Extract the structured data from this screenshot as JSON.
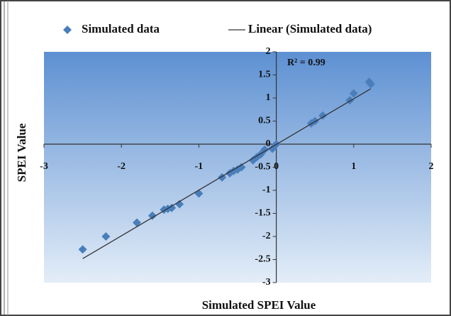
{
  "chart_data": {
    "type": "scatter",
    "x_label": "Simulated SPEI Value",
    "y_label": "SPEI Value",
    "annotation": "R² = 0.99",
    "xlim": [
      -3,
      2
    ],
    "ylim": [
      -3,
      2
    ],
    "xticks": [
      -3,
      -2,
      -1,
      0,
      1,
      2
    ],
    "yticks": [
      -3,
      -2.5,
      -2,
      -1.5,
      -1,
      -0.5,
      0,
      0.5,
      1,
      1.5,
      2
    ],
    "legend": "top",
    "series": [
      {
        "name": "Simulated data",
        "color": "#4a7ebb",
        "marker": "diamond",
        "x": [
          -2.5,
          -2.2,
          -1.8,
          -1.6,
          -1.45,
          -1.4,
          -1.35,
          -1.25,
          -1.0,
          -0.7,
          -0.6,
          -0.55,
          -0.5,
          -0.45,
          -0.3,
          -0.25,
          -0.2,
          -0.15,
          -0.05,
          0,
          0.45,
          0.5,
          0.6,
          0.95,
          1.0,
          1.2,
          1.22
        ],
        "values": [
          -2.28,
          -2.0,
          -1.7,
          -1.55,
          -1.42,
          -1.4,
          -1.38,
          -1.3,
          -1.07,
          -0.72,
          -0.63,
          -0.58,
          -0.55,
          -0.5,
          -0.35,
          -0.28,
          -0.22,
          -0.12,
          -0.1,
          0,
          0.45,
          0.5,
          0.62,
          0.95,
          1.1,
          1.35,
          1.3
        ]
      },
      {
        "name": "Linear (Simulated data)",
        "color": "#333333",
        "marker": "line",
        "x": [
          -2.5,
          1.22
        ],
        "values": [
          -2.48,
          1.2
        ]
      }
    ]
  }
}
